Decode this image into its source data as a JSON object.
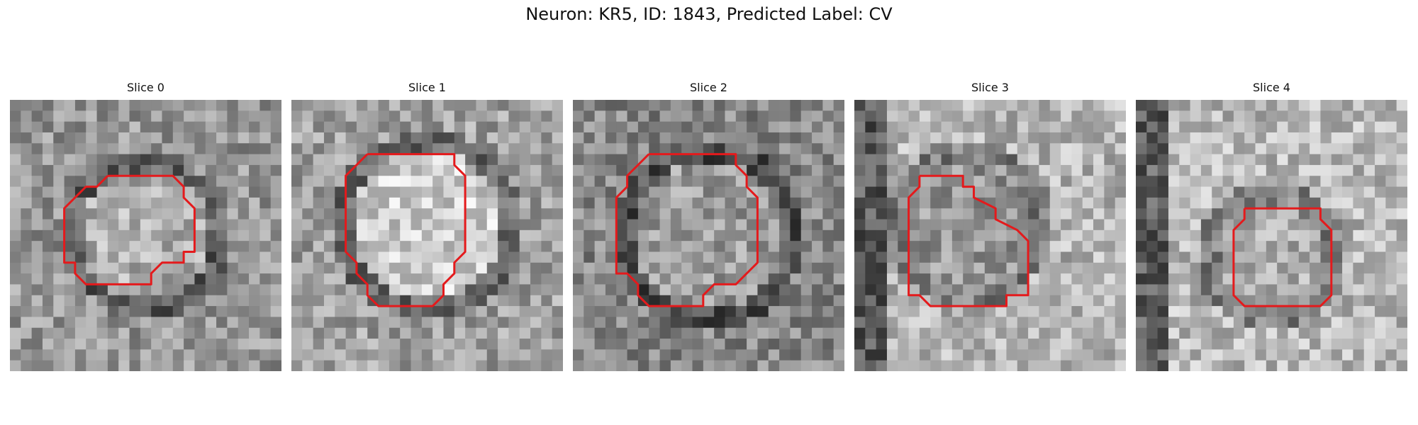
{
  "figure": {
    "title": "Neuron: KR5, ID: 1843, Predicted Label: CV",
    "contour_color": "#e41a1c",
    "colormap": "gray"
  },
  "panels": [
    {
      "title": "Slice 0",
      "seed": 11
    },
    {
      "title": "Slice 1",
      "seed": 23
    },
    {
      "title": "Slice 2",
      "seed": 37
    },
    {
      "title": "Slice 3",
      "seed": 51
    },
    {
      "title": "Slice 4",
      "seed": 67
    }
  ]
}
